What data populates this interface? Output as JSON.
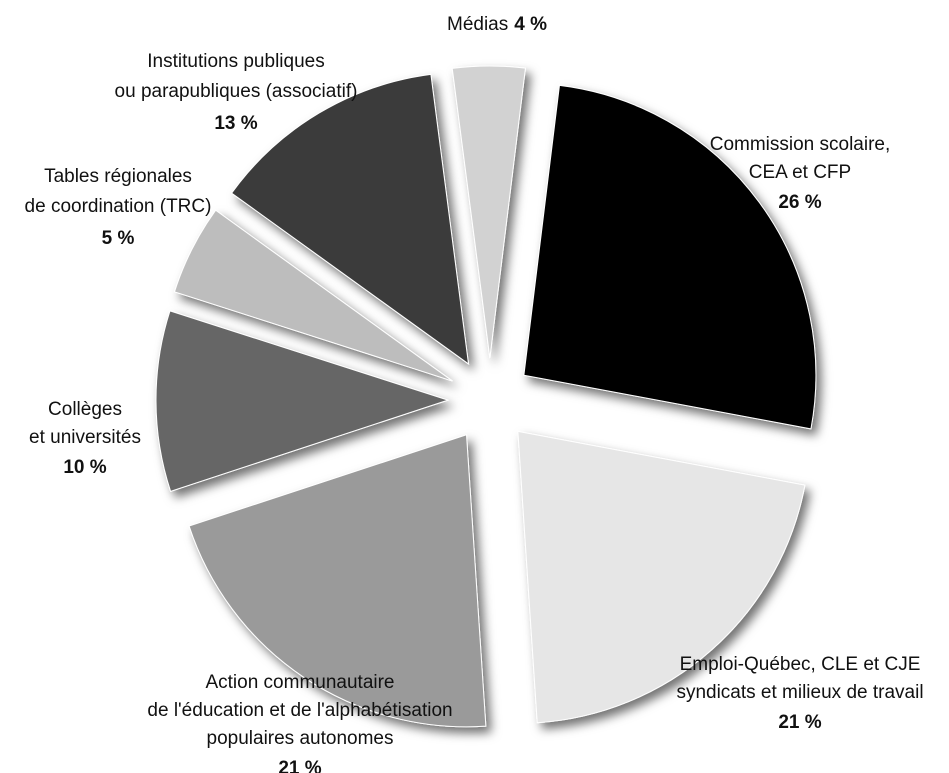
{
  "chart_data": {
    "type": "pie",
    "categories": [
      [
        "Commission scolaire,",
        "CEA et CFP"
      ],
      [
        "Emploi-Québec, CLE et CJE",
        "syndicats et milieux de travail"
      ],
      [
        "Action communautaire",
        "de l'éducation et de l'alphabétisation",
        "populaires autonomes"
      ],
      [
        "Collèges",
        "et universités"
      ],
      [
        "Tables régionales",
        "de coordination (TRC)"
      ],
      [
        "Institutions publiques",
        "ou parapubliques (associatif)"
      ],
      [
        "Médias"
      ]
    ],
    "values": [
      26,
      21,
      21,
      10,
      5,
      13,
      4
    ],
    "value_labels": [
      "26 %",
      "21 %",
      "21 %",
      "10 %",
      "5 %",
      "13 %",
      "4 %"
    ],
    "colors": [
      "#000000",
      "#e6e6e6",
      "#9a9a9a",
      "#666666",
      "#bdbdbd",
      "#3b3b3b",
      "#d2d2d2"
    ]
  }
}
